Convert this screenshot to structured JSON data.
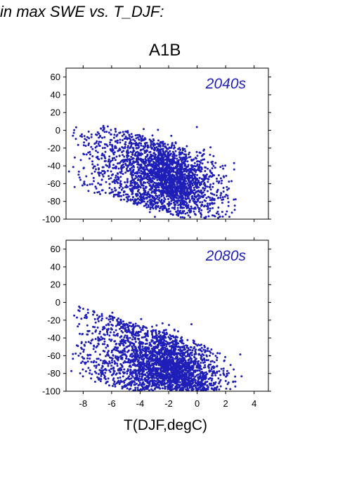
{
  "page": {
    "title": "in max SWE vs. T_DJF:",
    "scenario": "A1B"
  },
  "colors": {
    "points": "#1f1fb8",
    "axis": "#000000"
  },
  "chart_data": [
    {
      "type": "scatter",
      "annotation": "2040s",
      "xlim": [
        -9.2,
        5
      ],
      "ylim": [
        -100,
        70
      ],
      "yticks": [
        60,
        40,
        20,
        0,
        -20,
        -40,
        -60,
        -80,
        -100
      ],
      "xticks": [
        -8,
        -6,
        -4,
        -2,
        0,
        2,
        4
      ],
      "xtick_labels_shown": false,
      "cloud": {
        "approx_points": 2600,
        "x_range": [
          -9.2,
          3.4
        ],
        "y_range": [
          -100,
          5
        ],
        "trend_slope": -4.5,
        "core_center": [
          -1.8,
          -55
        ]
      }
    },
    {
      "type": "scatter",
      "annotation": "2080s",
      "xlim": [
        -9.2,
        5
      ],
      "ylim": [
        -100,
        70
      ],
      "yticks": [
        60,
        40,
        20,
        0,
        -20,
        -40,
        -60,
        -80,
        -100
      ],
      "xticks": [
        -8,
        -6,
        -4,
        -2,
        0,
        2,
        4
      ],
      "xtick_labels_shown": true,
      "xlabel": "T(DJF,degC)",
      "cloud": {
        "approx_points": 2600,
        "x_range": [
          -9.2,
          3.4
        ],
        "y_range": [
          -100,
          12
        ],
        "trend_slope": -5.0,
        "core_center": [
          -1.5,
          -78
        ]
      }
    }
  ]
}
